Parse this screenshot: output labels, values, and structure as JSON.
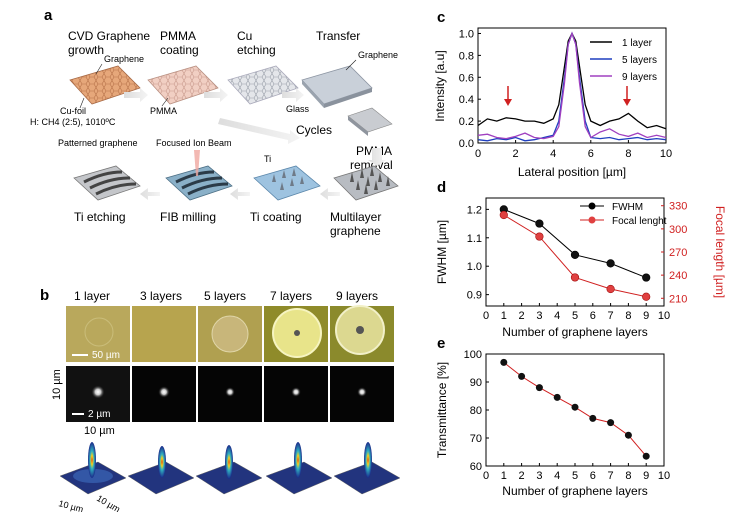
{
  "panel_a": {
    "label": "a",
    "steps": {
      "cvd_line1": "CVD Graphene",
      "cvd_line2": "growth",
      "pmma_coat_line1": "PMMA",
      "pmma_coat_line2": "coating",
      "cu_etch_line1": "Cu",
      "cu_etch_line2": "etching",
      "transfer": "Transfer",
      "graphene_label1": "Graphene",
      "graphene_label2": "Graphene",
      "cufoil": "Cu-foil",
      "conditions": "H: CH4 (2:5), 1010ºC",
      "pmma": "PMMA",
      "glass": "Glass",
      "cycles": "Cycles",
      "pmma_removal_line1": "PMMA",
      "pmma_removal_line2": "removal",
      "multilayer_line1": "Multilayer",
      "multilayer_line2": "graphene",
      "ti_coating": "Ti coating",
      "ti": "Ti",
      "fib_milling": "FIB milling",
      "focused_ion_beam": "Focused Ion Beam",
      "ti_etching": "Ti etching",
      "patterned_graphene": "Patterned graphene"
    }
  },
  "panel_b": {
    "label": "b",
    "columns": [
      "1 layer",
      "3 layers",
      "5 layers",
      "7 layers",
      "9 layers"
    ],
    "scale_50": "50 µm",
    "scale_2": "2 µm",
    "side_10": "10 µm",
    "top_10": "10 µm",
    "axis_10a": "10 µm",
    "axis_10b": "10 µm"
  },
  "panel_c": {
    "label": "c",
    "chart_data": {
      "type": "line",
      "xlabel": "Lateral position [µm]",
      "ylabel": "Intensity [a.u]",
      "xlim": [
        0,
        10
      ],
      "ylim": [
        0,
        1.05
      ],
      "xticks": [
        "0",
        "2",
        "4",
        "6",
        "8",
        "10"
      ],
      "yticks": [
        "0.0",
        "0.2",
        "0.4",
        "0.6",
        "0.8",
        "1.0"
      ],
      "legend": "top-right",
      "series": [
        {
          "name": "1 layer",
          "color": "#000000",
          "x": [
            0,
            0.5,
            1,
            1.5,
            2,
            2.5,
            3,
            3.5,
            4,
            4.3,
            4.6,
            4.8,
            5,
            5.2,
            5.4,
            5.7,
            6,
            6.5,
            7,
            7.5,
            8,
            8.5,
            9,
            9.5,
            10
          ],
          "y": [
            0.16,
            0.22,
            0.2,
            0.23,
            0.22,
            0.2,
            0.2,
            0.18,
            0.22,
            0.35,
            0.7,
            0.93,
            1.0,
            0.93,
            0.7,
            0.35,
            0.2,
            0.16,
            0.2,
            0.22,
            0.27,
            0.2,
            0.14,
            0.16,
            0.13
          ]
        },
        {
          "name": "5 layers",
          "color": "#1f3fbf",
          "x": [
            0,
            0.5,
            1,
            1.5,
            2,
            2.5,
            3,
            3.5,
            4,
            4.3,
            4.6,
            4.8,
            5,
            5.2,
            5.4,
            5.7,
            6,
            6.5,
            7,
            7.5,
            8,
            8.5,
            9,
            9.5,
            10
          ],
          "y": [
            0.03,
            0.02,
            0.04,
            0.03,
            0.05,
            0.02,
            0.03,
            0.05,
            0.07,
            0.2,
            0.6,
            0.9,
            1.0,
            0.9,
            0.6,
            0.2,
            0.05,
            0.04,
            0.05,
            0.03,
            0.04,
            0.05,
            0.03,
            0.04,
            0.03
          ]
        },
        {
          "name": "9 layers",
          "color": "#a040c0",
          "x": [
            0,
            0.5,
            1,
            1.5,
            2,
            2.5,
            3,
            3.5,
            4,
            4.3,
            4.6,
            4.8,
            5,
            5.2,
            5.4,
            5.7,
            6,
            6.5,
            7,
            7.5,
            8,
            8.5,
            9,
            9.5,
            10
          ],
          "y": [
            0.07,
            0.08,
            0.05,
            0.04,
            0.06,
            0.09,
            0.05,
            0.04,
            0.06,
            0.15,
            0.55,
            0.9,
            1.0,
            0.9,
            0.55,
            0.15,
            0.05,
            0.1,
            0.13,
            0.08,
            0.06,
            0.09,
            0.05,
            0.07,
            0.05
          ]
        }
      ]
    }
  },
  "panel_d": {
    "label": "d",
    "chart_data": {
      "type": "line",
      "xlabel": "Number of graphene layers",
      "ylabel": "FWHM [µm]",
      "ylabel_right": "Focal length [µm]",
      "x": [
        1,
        3,
        5,
        7,
        9
      ],
      "xticks": [
        "0",
        "1",
        "2",
        "3",
        "4",
        "5",
        "6",
        "7",
        "8",
        "9",
        "10"
      ],
      "yticks": [
        "0.9",
        "1.0",
        "1.1",
        "1.2"
      ],
      "yticks_right": [
        "210",
        "240",
        "270",
        "300",
        "330"
      ],
      "ylim": [
        0.86,
        1.24
      ],
      "ylim_right": [
        200,
        340
      ],
      "legend": "top-right",
      "series": [
        {
          "name": "FWHM",
          "color": "#000000",
          "values": [
            1.2,
            1.15,
            1.04,
            1.01,
            0.96
          ]
        },
        {
          "name": "Focal lenght",
          "color": "#d02020",
          "values": [
            318,
            290,
            237,
            222,
            212
          ]
        }
      ]
    }
  },
  "panel_e": {
    "label": "e",
    "chart_data": {
      "type": "line",
      "xlabel": "Number of graphene layers",
      "ylabel": "Transmittance [%]",
      "xlim": [
        0,
        10
      ],
      "ylim": [
        60,
        100
      ],
      "xticks": [
        "0",
        "1",
        "2",
        "3",
        "4",
        "5",
        "6",
        "7",
        "8",
        "9",
        "10"
      ],
      "yticks": [
        "60",
        "70",
        "80",
        "90",
        "100"
      ],
      "series": [
        {
          "name": "",
          "color": "#d02020",
          "x": [
            1,
            2,
            3,
            4,
            5,
            6,
            7,
            8,
            9
          ],
          "values": [
            97,
            92,
            88,
            84.5,
            81,
            77,
            75.5,
            71,
            63.5
          ]
        }
      ]
    }
  }
}
